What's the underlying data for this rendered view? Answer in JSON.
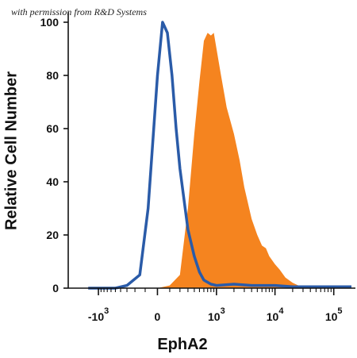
{
  "watermark": "with permission from R&D Systems",
  "chart_data": {
    "type": "area",
    "title": "",
    "xlabel": "EphA2",
    "ylabel": "Relative Cell Number",
    "x_scale": "biexponential",
    "ylim": [
      0,
      100
    ],
    "y_ticks": [
      0,
      20,
      40,
      60,
      80,
      100
    ],
    "x_ticks": [
      {
        "value": -1000,
        "base": "-10",
        "exp": "3"
      },
      {
        "value": 0,
        "base": "0",
        "exp": ""
      },
      {
        "value": 1000,
        "base": "10",
        "exp": "3"
      },
      {
        "value": 10000,
        "base": "10",
        "exp": "4"
      },
      {
        "value": 100000,
        "base": "10",
        "exp": "5"
      }
    ],
    "grid": false,
    "series": [
      {
        "color": "#f5841f",
        "style": "filled",
        "x": [
          -200,
          0,
          100,
          200,
          300,
          400,
          500,
          600,
          700,
          800,
          900,
          1000,
          1200,
          1500,
          2000,
          2500,
          3000,
          4000,
          5000,
          6000,
          7000,
          8000,
          10000,
          12000,
          15000,
          20000,
          25000,
          30000,
          40000
        ],
        "y": [
          0,
          0,
          1,
          5,
          30,
          58,
          78,
          93,
          96,
          95,
          96,
          90,
          80,
          68,
          58,
          48,
          38,
          26,
          20,
          16,
          15,
          12,
          9,
          7,
          4,
          2,
          1,
          0,
          0
        ]
      },
      {
        "color": "#2a5ba8",
        "style": "line",
        "x": [
          -1500,
          -500,
          -300,
          -150,
          -75,
          0,
          40,
          80,
          120,
          160,
          200,
          300,
          400,
          500,
          600,
          800,
          1000,
          2000,
          4000,
          10000,
          20000,
          100000,
          200000
        ],
        "y": [
          0,
          0,
          1,
          5,
          30,
          80,
          100,
          96,
          80,
          60,
          45,
          22,
          12,
          6,
          3,
          1.5,
          1,
          1.5,
          1,
          1,
          0.5,
          0.5,
          0.5
        ]
      }
    ]
  }
}
